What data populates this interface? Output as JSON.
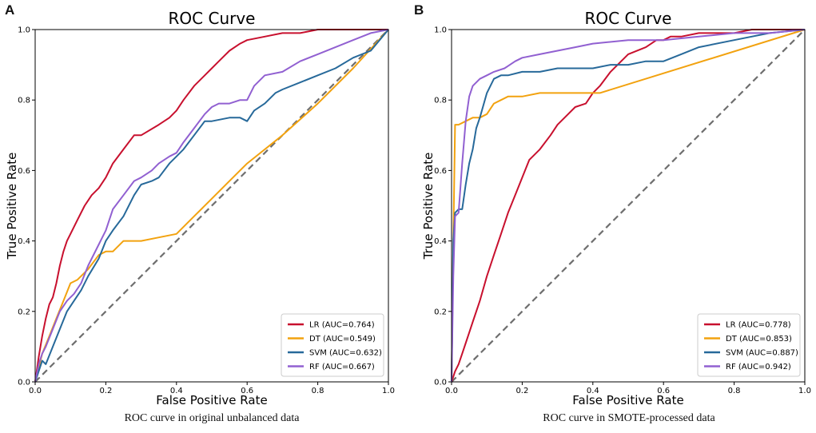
{
  "colors": {
    "LR": "#c8102e",
    "DT": "#f2a20f",
    "SVM": "#27699a",
    "RF": "#9160d1",
    "diagonal": "#6e6e6e"
  },
  "panels": [
    {
      "letter": "A",
      "caption": "ROC curve in original unbalanced data"
    },
    {
      "letter": "B",
      "caption": "ROC curve in SMOTE-processed data"
    }
  ],
  "chart_data": [
    {
      "type": "line",
      "title": "ROC Curve",
      "xlabel": "False Positive Rate",
      "ylabel": "True Positive Rate",
      "xlim": [
        0,
        1
      ],
      "ylim": [
        0,
        1
      ],
      "xticks": [
        "0.0",
        "0.2",
        "0.4",
        "0.6",
        "0.8",
        "1.0"
      ],
      "yticks": [
        "0.0",
        "0.2",
        "0.4",
        "0.6",
        "0.8",
        "1.0"
      ],
      "legend_position": "lower-right",
      "diagonal": {
        "style": "dashed",
        "x": [
          0,
          1
        ],
        "y": [
          0,
          1
        ]
      },
      "series": [
        {
          "name": "LR",
          "label": "LR (AUC=0.764)",
          "color": "#c8102e",
          "x": [
            0,
            0.01,
            0.02,
            0.03,
            0.04,
            0.05,
            0.06,
            0.07,
            0.08,
            0.09,
            0.1,
            0.12,
            0.14,
            0.16,
            0.18,
            0.2,
            0.22,
            0.25,
            0.28,
            0.3,
            0.35,
            0.38,
            0.4,
            0.42,
            0.45,
            0.48,
            0.5,
            0.52,
            0.55,
            0.58,
            0.6,
            0.65,
            0.7,
            0.75,
            0.8,
            0.85,
            0.9,
            0.95,
            1.0
          ],
          "y": [
            0,
            0.07,
            0.13,
            0.18,
            0.22,
            0.24,
            0.28,
            0.33,
            0.37,
            0.4,
            0.42,
            0.46,
            0.5,
            0.53,
            0.55,
            0.58,
            0.62,
            0.66,
            0.7,
            0.7,
            0.73,
            0.75,
            0.77,
            0.8,
            0.84,
            0.87,
            0.89,
            0.91,
            0.94,
            0.96,
            0.97,
            0.98,
            0.99,
            0.99,
            1.0,
            1.0,
            1.0,
            1.0,
            1.0
          ]
        },
        {
          "name": "DT",
          "label": "DT (AUC=0.549)",
          "color": "#f2a20f",
          "x": [
            0,
            0.02,
            0.04,
            0.06,
            0.08,
            0.1,
            0.12,
            0.15,
            0.18,
            0.2,
            0.22,
            0.25,
            0.28,
            0.3,
            0.35,
            0.4,
            0.45,
            0.5,
            0.55,
            0.6,
            0.7,
            0.8,
            0.9,
            1.0
          ],
          "y": [
            0,
            0.08,
            0.13,
            0.18,
            0.23,
            0.28,
            0.29,
            0.32,
            0.36,
            0.37,
            0.37,
            0.4,
            0.4,
            0.4,
            0.41,
            0.42,
            0.47,
            0.52,
            0.57,
            0.62,
            0.7,
            0.79,
            0.89,
            1.0
          ]
        },
        {
          "name": "SVM",
          "label": "SVM (AUC=0.632)",
          "color": "#27699a",
          "x": [
            0,
            0.01,
            0.02,
            0.03,
            0.05,
            0.07,
            0.09,
            0.11,
            0.13,
            0.15,
            0.18,
            0.2,
            0.22,
            0.25,
            0.28,
            0.3,
            0.33,
            0.35,
            0.38,
            0.4,
            0.42,
            0.45,
            0.48,
            0.5,
            0.55,
            0.58,
            0.6,
            0.62,
            0.65,
            0.68,
            0.7,
            0.75,
            0.8,
            0.85,
            0.9,
            0.95,
            1.0
          ],
          "y": [
            0,
            0.03,
            0.06,
            0.05,
            0.1,
            0.15,
            0.2,
            0.23,
            0.26,
            0.3,
            0.35,
            0.4,
            0.43,
            0.47,
            0.53,
            0.56,
            0.57,
            0.58,
            0.62,
            0.64,
            0.66,
            0.7,
            0.74,
            0.74,
            0.75,
            0.75,
            0.74,
            0.77,
            0.79,
            0.82,
            0.83,
            0.85,
            0.87,
            0.89,
            0.92,
            0.94,
            1.0
          ]
        },
        {
          "name": "RF",
          "label": "RF (AUC=0.667)",
          "color": "#9160d1",
          "x": [
            0,
            0.01,
            0.02,
            0.03,
            0.05,
            0.07,
            0.09,
            0.11,
            0.13,
            0.15,
            0.18,
            0.2,
            0.22,
            0.25,
            0.28,
            0.3,
            0.33,
            0.35,
            0.38,
            0.4,
            0.42,
            0.45,
            0.48,
            0.5,
            0.52,
            0.55,
            0.58,
            0.6,
            0.62,
            0.65,
            0.7,
            0.75,
            0.8,
            0.85,
            0.9,
            0.95,
            1.0
          ],
          "y": [
            0,
            0.05,
            0.08,
            0.1,
            0.15,
            0.2,
            0.23,
            0.25,
            0.28,
            0.33,
            0.39,
            0.43,
            0.49,
            0.53,
            0.57,
            0.58,
            0.6,
            0.62,
            0.64,
            0.65,
            0.68,
            0.72,
            0.76,
            0.78,
            0.79,
            0.79,
            0.8,
            0.8,
            0.84,
            0.87,
            0.88,
            0.91,
            0.93,
            0.95,
            0.97,
            0.99,
            1.0
          ]
        }
      ]
    },
    {
      "type": "line",
      "title": "ROC Curve",
      "xlabel": "False Positive Rate",
      "ylabel": "True Positive Rate",
      "xlim": [
        0,
        1
      ],
      "ylim": [
        0,
        1
      ],
      "xticks": [
        "0.0",
        "0.2",
        "0.4",
        "0.6",
        "0.8",
        "1.0"
      ],
      "yticks": [
        "0.0",
        "0.2",
        "0.4",
        "0.6",
        "0.8",
        "1.0"
      ],
      "legend_position": "lower-right",
      "diagonal": {
        "style": "dashed",
        "x": [
          0,
          1
        ],
        "y": [
          0,
          1
        ]
      },
      "series": [
        {
          "name": "LR",
          "label": "LR (AUC=0.778)",
          "color": "#c8102e",
          "x": [
            0,
            0.01,
            0.02,
            0.03,
            0.04,
            0.05,
            0.06,
            0.08,
            0.1,
            0.12,
            0.14,
            0.16,
            0.18,
            0.2,
            0.22,
            0.25,
            0.28,
            0.3,
            0.33,
            0.35,
            0.38,
            0.4,
            0.42,
            0.45,
            0.48,
            0.5,
            0.55,
            0.58,
            0.6,
            0.62,
            0.65,
            0.7,
            0.75,
            0.8,
            0.85,
            0.9,
            1.0
          ],
          "y": [
            0,
            0.03,
            0.05,
            0.08,
            0.11,
            0.14,
            0.17,
            0.23,
            0.3,
            0.36,
            0.42,
            0.48,
            0.53,
            0.58,
            0.63,
            0.66,
            0.7,
            0.73,
            0.76,
            0.78,
            0.79,
            0.82,
            0.84,
            0.88,
            0.91,
            0.93,
            0.95,
            0.97,
            0.97,
            0.98,
            0.98,
            0.99,
            0.99,
            0.99,
            1.0,
            1.0,
            1.0
          ]
        },
        {
          "name": "DT",
          "label": "DT (AUC=0.853)",
          "color": "#f2a20f",
          "x": [
            0,
            0.005,
            0.01,
            0.02,
            0.04,
            0.06,
            0.08,
            0.1,
            0.12,
            0.14,
            0.16,
            0.2,
            0.25,
            0.3,
            0.35,
            0.4,
            0.42,
            1.0
          ],
          "y": [
            0,
            0.4,
            0.73,
            0.73,
            0.74,
            0.75,
            0.75,
            0.76,
            0.79,
            0.8,
            0.81,
            0.81,
            0.82,
            0.82,
            0.82,
            0.82,
            0.82,
            1.0
          ]
        },
        {
          "name": "SVM",
          "label": "SVM (AUC=0.887)",
          "color": "#27699a",
          "x": [
            0,
            0.005,
            0.01,
            0.02,
            0.03,
            0.04,
            0.05,
            0.06,
            0.07,
            0.08,
            0.1,
            0.12,
            0.14,
            0.16,
            0.2,
            0.25,
            0.3,
            0.35,
            0.4,
            0.45,
            0.5,
            0.55,
            0.6,
            0.65,
            0.7,
            0.8,
            0.9,
            1.0
          ],
          "y": [
            0,
            0.4,
            0.48,
            0.49,
            0.49,
            0.56,
            0.62,
            0.66,
            0.72,
            0.75,
            0.82,
            0.86,
            0.87,
            0.87,
            0.88,
            0.88,
            0.89,
            0.89,
            0.89,
            0.9,
            0.9,
            0.91,
            0.91,
            0.93,
            0.95,
            0.97,
            0.99,
            1.0
          ]
        },
        {
          "name": "RF",
          "label": "RF (AUC=0.942)",
          "color": "#9160d1",
          "x": [
            0,
            0.005,
            0.01,
            0.02,
            0.03,
            0.04,
            0.05,
            0.06,
            0.08,
            0.1,
            0.12,
            0.15,
            0.18,
            0.2,
            0.25,
            0.3,
            0.35,
            0.4,
            0.5,
            0.6,
            0.7,
            0.8,
            0.9,
            1.0
          ],
          "y": [
            0,
            0.3,
            0.47,
            0.48,
            0.62,
            0.74,
            0.81,
            0.84,
            0.86,
            0.87,
            0.88,
            0.89,
            0.91,
            0.92,
            0.93,
            0.94,
            0.95,
            0.96,
            0.97,
            0.97,
            0.98,
            0.99,
            0.99,
            1.0
          ]
        }
      ]
    }
  ]
}
